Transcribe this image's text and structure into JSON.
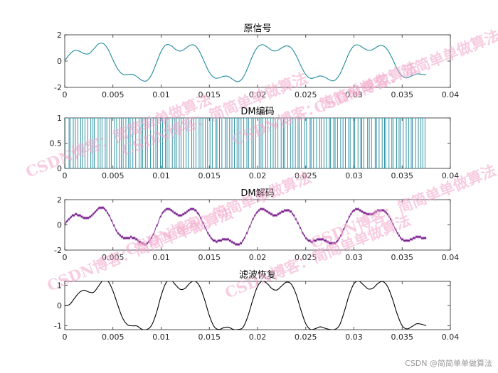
{
  "chart_data": [
    {
      "type": "line",
      "title": "原信号",
      "xlabel": "",
      "ylabel": "",
      "xlim": [
        0,
        0.04
      ],
      "ylim": [
        -2,
        2
      ],
      "xticks": [
        "0",
        "0.005",
        "0.01",
        "0.015",
        "0.02",
        "0.025",
        "0.03",
        "0.035",
        "0.04"
      ],
      "yticks": [
        "2",
        "0",
        "-2"
      ],
      "series": [
        {
          "color": "#1f8a9e",
          "x": [
            0,
            0.0005,
            0.001,
            0.0015,
            0.002,
            0.0025,
            0.003,
            0.0035,
            0.004,
            0.0045,
            0.005,
            0.0055,
            0.006,
            0.0065,
            0.007,
            0.0075,
            0.008,
            0.0085,
            0.009,
            0.0095,
            0.01,
            0.0105,
            0.011,
            0.0115,
            0.012,
            0.0125,
            0.013,
            0.0135,
            0.014,
            0.0145,
            0.015,
            0.0155,
            0.016,
            0.0165,
            0.017,
            0.0175,
            0.018,
            0.0185,
            0.019,
            0.0195,
            0.02,
            0.0205,
            0.021,
            0.0215,
            0.022,
            0.0225,
            0.023,
            0.0235,
            0.024,
            0.0245,
            0.025,
            0.0255,
            0.026,
            0.0265,
            0.027,
            0.0275,
            0.028,
            0.0285,
            0.029,
            0.0295,
            0.03,
            0.0305,
            0.031,
            0.0315,
            0.032,
            0.0325,
            0.033,
            0.0335,
            0.034,
            0.0345,
            0.035,
            0.0355,
            0.036,
            0.0365,
            0.037,
            0.0375
          ],
          "y": [
            0.04,
            0.51,
            0.8,
            0.76,
            0.57,
            0.57,
            0.91,
            1.3,
            1.34,
            0.89,
            0.1,
            -0.61,
            -0.99,
            -1.03,
            -1.0,
            -1.19,
            -1.46,
            -1.5,
            -1.04,
            -0.16,
            0.74,
            1.23,
            1.19,
            0.89,
            0.76,
            0.95,
            1.21,
            1.19,
            0.7,
            -0.09,
            -0.85,
            -1.26,
            -1.28,
            -1.15,
            -1.18,
            -1.43,
            -1.56,
            -1.25,
            -0.48,
            0.42,
            1.06,
            1.25,
            1.07,
            0.82,
            0.79,
            1.0,
            1.16,
            1.0,
            0.43,
            -0.36,
            -1.02,
            -1.31,
            -1.24,
            -1.13,
            -1.23,
            -1.44,
            -1.47,
            -1.04,
            -0.25,
            0.62,
            1.16,
            1.21,
            0.99,
            0.82,
            0.9,
            1.13,
            1.17,
            0.84,
            0.16,
            -0.62,
            -1.14,
            -1.27,
            -1.12,
            -0.98,
            -1.0,
            -1.05
          ]
        }
      ]
    },
    {
      "type": "bar",
      "title": "DM编码",
      "xlabel": "",
      "ylabel": "",
      "xlim": [
        0,
        0.04
      ],
      "ylim": [
        0,
        1
      ],
      "xticks": [
        "0",
        "0.005",
        "0.01",
        "0.015",
        "0.02",
        "0.025",
        "0.03",
        "0.035",
        "0.04"
      ],
      "yticks": [
        "1",
        "0.5",
        "0"
      ],
      "series": [
        {
          "color": "#1f8a9e",
          "x_range": [
            0,
            0.0375
          ],
          "count": 150,
          "value": 1
        }
      ]
    },
    {
      "type": "line",
      "title": "DM解码",
      "xlabel": "",
      "ylabel": "",
      "xlim": [
        0,
        0.04
      ],
      "ylim": [
        -2,
        2
      ],
      "xticks": [
        "0",
        "0.005",
        "0.01",
        "0.015",
        "0.02",
        "0.025",
        "0.03",
        "0.035",
        "0.04"
      ],
      "yticks": [
        "2",
        "0",
        "-2"
      ],
      "series": [
        {
          "color": "#7a1f8c",
          "step": 0.2,
          "x": [
            0,
            0.0005,
            0.001,
            0.0015,
            0.002,
            0.0025,
            0.003,
            0.0035,
            0.004,
            0.0045,
            0.005,
            0.0055,
            0.006,
            0.0065,
            0.007,
            0.0075,
            0.008,
            0.0085,
            0.009,
            0.0095,
            0.01,
            0.0105,
            0.011,
            0.0115,
            0.012,
            0.0125,
            0.013,
            0.0135,
            0.014,
            0.0145,
            0.015,
            0.0155,
            0.016,
            0.0165,
            0.017,
            0.0175,
            0.018,
            0.0185,
            0.019,
            0.0195,
            0.02,
            0.0205,
            0.021,
            0.0215,
            0.022,
            0.0225,
            0.023,
            0.0235,
            0.024,
            0.0245,
            0.025,
            0.0255,
            0.026,
            0.0265,
            0.027,
            0.0275,
            0.028,
            0.0285,
            0.029,
            0.0295,
            0.03,
            0.0305,
            0.031,
            0.0315,
            0.032,
            0.0325,
            0.033,
            0.0335,
            0.034,
            0.0345,
            0.035,
            0.0355,
            0.036,
            0.0365,
            0.037,
            0.0375
          ],
          "y": [
            0.04,
            0.51,
            0.8,
            0.76,
            0.57,
            0.57,
            0.91,
            1.3,
            1.34,
            0.89,
            0.1,
            -0.61,
            -0.99,
            -1.03,
            -1.0,
            -1.19,
            -1.46,
            -1.5,
            -1.04,
            -0.16,
            0.74,
            1.23,
            1.19,
            0.89,
            0.76,
            0.95,
            1.21,
            1.19,
            0.7,
            -0.09,
            -0.85,
            -1.26,
            -1.28,
            -1.15,
            -1.18,
            -1.43,
            -1.56,
            -1.25,
            -0.48,
            0.42,
            1.06,
            1.25,
            1.07,
            0.82,
            0.79,
            1.0,
            1.16,
            1.0,
            0.43,
            -0.36,
            -1.02,
            -1.31,
            -1.24,
            -1.13,
            -1.23,
            -1.44,
            -1.47,
            -1.04,
            -0.25,
            0.62,
            1.16,
            1.21,
            0.99,
            0.82,
            0.9,
            1.13,
            1.17,
            0.84,
            0.16,
            -0.62,
            -1.14,
            -1.27,
            -1.12,
            -0.98,
            -1.0,
            -1.05
          ]
        }
      ]
    },
    {
      "type": "line",
      "title": "滤波恢复",
      "xlabel": "",
      "ylabel": "",
      "xlim": [
        0,
        0.04
      ],
      "ylim": [
        -1.2,
        1.2
      ],
      "xticks": [
        "0",
        "0.005",
        "0.01",
        "0.015",
        "0.02",
        "0.025",
        "0.03",
        "0.035",
        "0.04"
      ],
      "yticks": [
        "1",
        "0",
        "-1"
      ],
      "series": [
        {
          "color": "#000000",
          "x": [
            0,
            0.0005,
            0.001,
            0.0015,
            0.002,
            0.0025,
            0.003,
            0.0035,
            0.004,
            0.0045,
            0.005,
            0.0055,
            0.006,
            0.0065,
            0.007,
            0.0075,
            0.008,
            0.0085,
            0.009,
            0.0095,
            0.01,
            0.0105,
            0.011,
            0.0115,
            0.012,
            0.0125,
            0.013,
            0.0135,
            0.014,
            0.0145,
            0.015,
            0.0155,
            0.016,
            0.0165,
            0.017,
            0.0175,
            0.018,
            0.0185,
            0.019,
            0.0195,
            0.02,
            0.0205,
            0.021,
            0.0215,
            0.022,
            0.0225,
            0.023,
            0.0235,
            0.024,
            0.0245,
            0.025,
            0.0255,
            0.026,
            0.0265,
            0.027,
            0.0275,
            0.028,
            0.0285,
            0.029,
            0.0295,
            0.03,
            0.0305,
            0.031,
            0.0315,
            0.032,
            0.0325,
            0.033,
            0.0335,
            0.034,
            0.0345,
            0.035,
            0.0355,
            0.036,
            0.0365,
            0.037,
            0.0375
          ],
          "y": [
            0.0,
            0.05,
            0.35,
            0.64,
            0.76,
            0.67,
            0.66,
            0.96,
            1.26,
            1.2,
            0.72,
            0.03,
            -0.62,
            -0.95,
            -1.01,
            -1.02,
            -1.18,
            -1.19,
            -0.99,
            -0.38,
            0.49,
            1.12,
            1.26,
            1.02,
            0.8,
            0.86,
            1.12,
            1.21,
            0.95,
            0.3,
            -0.5,
            -1.05,
            -1.19,
            -1.1,
            -1.08,
            -1.19,
            -1.19,
            -1.08,
            -0.53,
            0.27,
            0.95,
            1.21,
            1.09,
            0.84,
            0.77,
            0.97,
            1.16,
            1.06,
            0.56,
            -0.22,
            -0.9,
            -1.19,
            -1.15,
            -1.06,
            -1.13,
            -1.19,
            -1.19,
            -0.98,
            -0.3,
            0.51,
            1.08,
            1.21,
            1.02,
            0.82,
            0.87,
            1.1,
            1.19,
            0.93,
            0.32,
            -0.44,
            -1.0,
            -1.16,
            -1.05,
            -0.91,
            -0.93,
            -1.0
          ]
        }
      ]
    }
  ],
  "watermark": {
    "text": "CSDN博客：简简单单做算法",
    "color": "#f2a6c9"
  },
  "credit": "CSDN @简简单单做算法"
}
